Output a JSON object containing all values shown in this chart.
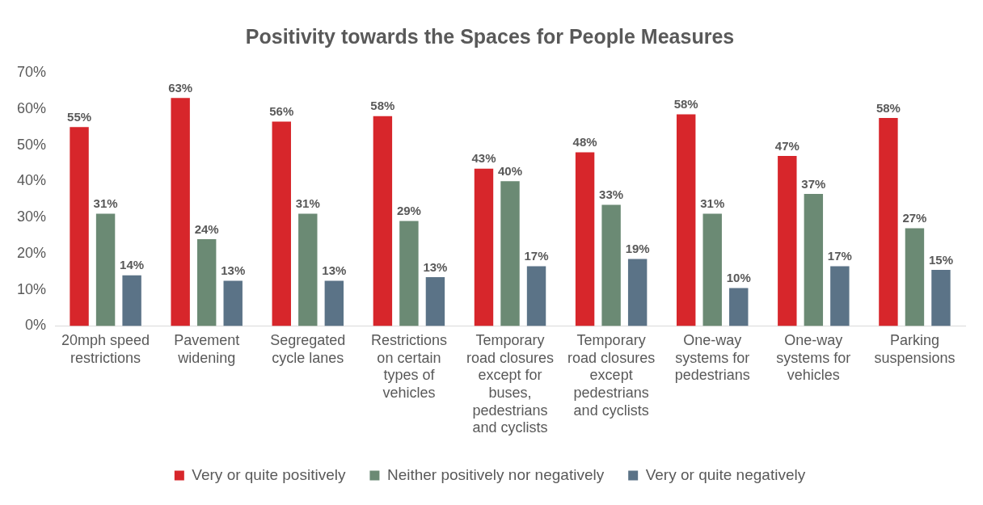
{
  "chart_data": {
    "type": "bar",
    "title": "Positivity towards the Spaces for People Measures",
    "categories": [
      "20mph speed restrictions",
      "Pavement widening",
      "Segregated cycle lanes",
      "Restrictions on certain types of vehicles",
      "Temporary road closures except for buses, pedestrians and cyclists",
      "Temporary road closures except pedestrians and cyclists",
      "One-way systems for pedestrians",
      "One-way systems for vehicles",
      "Parking suspensions"
    ],
    "series": [
      {
        "name": "Very or quite positively",
        "color": "#d7262b",
        "values": [
          55,
          63,
          56.5,
          58,
          43.5,
          48,
          58.5,
          47,
          57.5
        ],
        "value_labels": [
          "55%",
          "63%",
          "56%",
          "58%",
          "43%",
          "48%",
          "58%",
          "47%",
          "58%"
        ]
      },
      {
        "name": "Neither positively nor negatively",
        "color": "#6b8a74",
        "values": [
          31,
          24,
          31,
          29,
          40,
          33.5,
          31,
          36.5,
          27
        ],
        "value_labels": [
          "31%",
          "24%",
          "31%",
          "29%",
          "40%",
          "33%",
          "31%",
          "37%",
          "27%"
        ]
      },
      {
        "name": "Very or quite negatively",
        "color": "#5b7387",
        "values": [
          14,
          12.5,
          12.5,
          13.5,
          16.5,
          18.5,
          10.5,
          16.5,
          15.5
        ],
        "value_labels": [
          "14%",
          "13%",
          "13%",
          "13%",
          "17%",
          "19%",
          "10%",
          "17%",
          "15%"
        ]
      }
    ],
    "ylim": [
      0,
      70
    ],
    "yticks": [
      {
        "value": 0,
        "label": "0%"
      },
      {
        "value": 10,
        "label": "10%"
      },
      {
        "value": 20,
        "label": "20%"
      },
      {
        "value": 30,
        "label": "30%"
      },
      {
        "value": 40,
        "label": "40%"
      },
      {
        "value": 50,
        "label": "50%"
      },
      {
        "value": 60,
        "label": "60%"
      },
      {
        "value": 70,
        "label": "70%"
      }
    ],
    "grid": false,
    "legend": "bottom"
  }
}
